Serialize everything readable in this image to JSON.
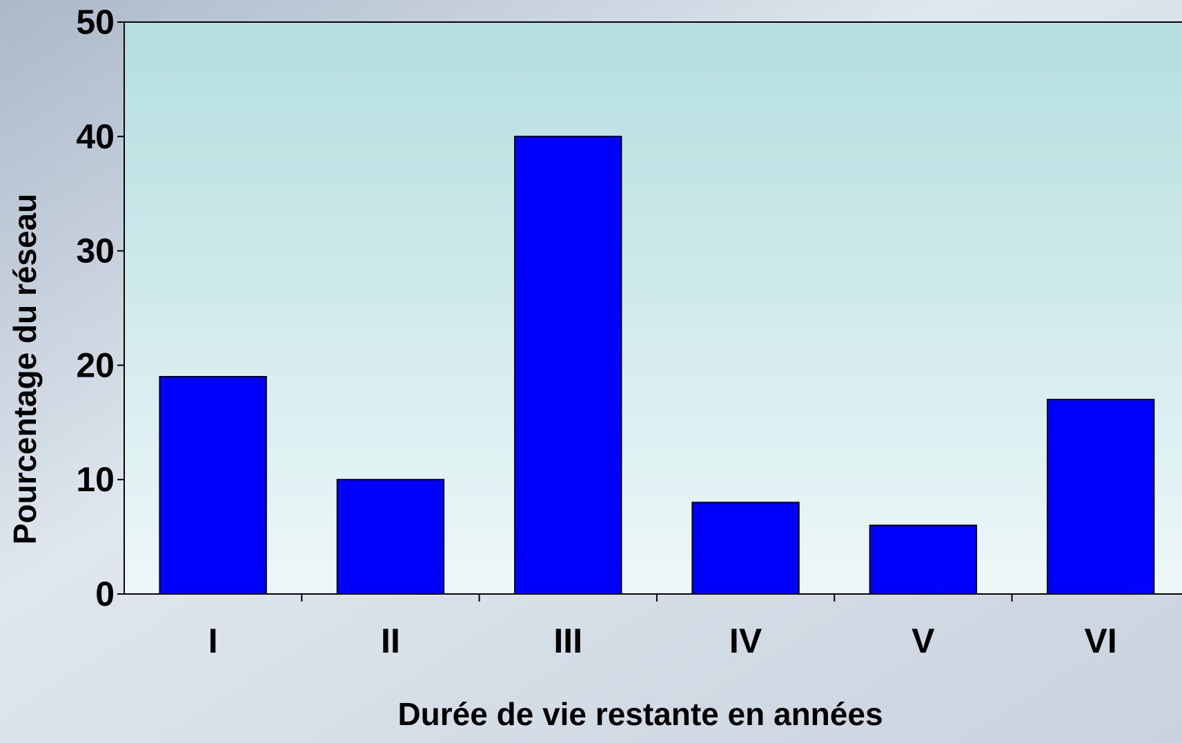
{
  "chart_data": {
    "type": "bar",
    "categories": [
      "I",
      "II",
      "III",
      "IV",
      "V",
      "VI"
    ],
    "values": [
      19,
      10,
      40,
      8,
      6,
      17
    ],
    "color": "#0000ff",
    "xlabel": "Durée de vie restante en années",
    "ylabel": "Pourcentage du réseau",
    "ylim": [
      0,
      50
    ],
    "yticks": [
      0,
      10,
      20,
      30,
      40,
      50
    ],
    "grid": false
  }
}
